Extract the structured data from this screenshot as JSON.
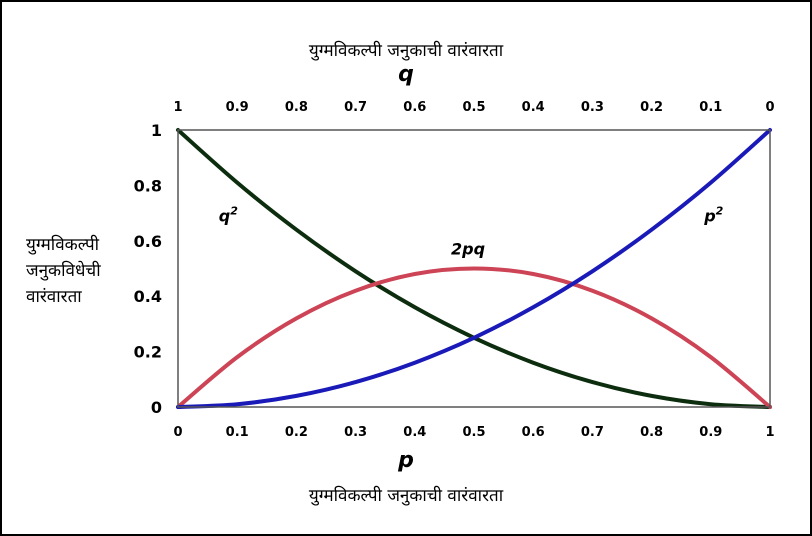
{
  "chart_data": {
    "type": "line",
    "title": "युग्मविकल्पी जनुकाची वारंवारता",
    "top_axis_var": "q",
    "xlabel_var": "p",
    "xlabel": "युग्मविकल्पी जनुकाची वारंवारता",
    "ylabel_lines": [
      "युग्मविकल्पी",
      "जनुकविधेची",
      "वारंवारता"
    ],
    "xlim": [
      0,
      1
    ],
    "ylim": [
      0,
      1
    ],
    "x_ticks": [
      "0",
      "0.1",
      "0.2",
      "0.3",
      "0.4",
      "0.5",
      "0.6",
      "0.7",
      "0.8",
      "0.9",
      "1"
    ],
    "top_ticks": [
      "1",
      "0.9",
      "0.8",
      "0.7",
      "0.6",
      "0.5",
      "0.4",
      "0.3",
      "0.2",
      "0.1",
      "0"
    ],
    "y_ticks": [
      "0",
      "0.2",
      "0.4",
      "0.6",
      "0.8",
      "1"
    ],
    "grid": false,
    "x": [
      0,
      0.1,
      0.2,
      0.3,
      0.4,
      0.5,
      0.6,
      0.7,
      0.8,
      0.9,
      1
    ],
    "series": [
      {
        "name": "q²",
        "label_base": "q",
        "label_sup": "2",
        "color": "#0d2d0f",
        "values": [
          1,
          0.81,
          0.64,
          0.49,
          0.36,
          0.25,
          0.16,
          0.09,
          0.04,
          0.01,
          0
        ]
      },
      {
        "name": "2pq",
        "label_base": "2pq",
        "label_sup": "",
        "color": "#cc4455",
        "values": [
          0,
          0.18,
          0.32,
          0.42,
          0.48,
          0.5,
          0.48,
          0.42,
          0.32,
          0.18,
          0
        ]
      },
      {
        "name": "p²",
        "label_base": "p",
        "label_sup": "2",
        "color": "#1a1ab8",
        "values": [
          0,
          0.01,
          0.04,
          0.09,
          0.16,
          0.25,
          0.36,
          0.49,
          0.64,
          0.81,
          1
        ]
      }
    ]
  }
}
